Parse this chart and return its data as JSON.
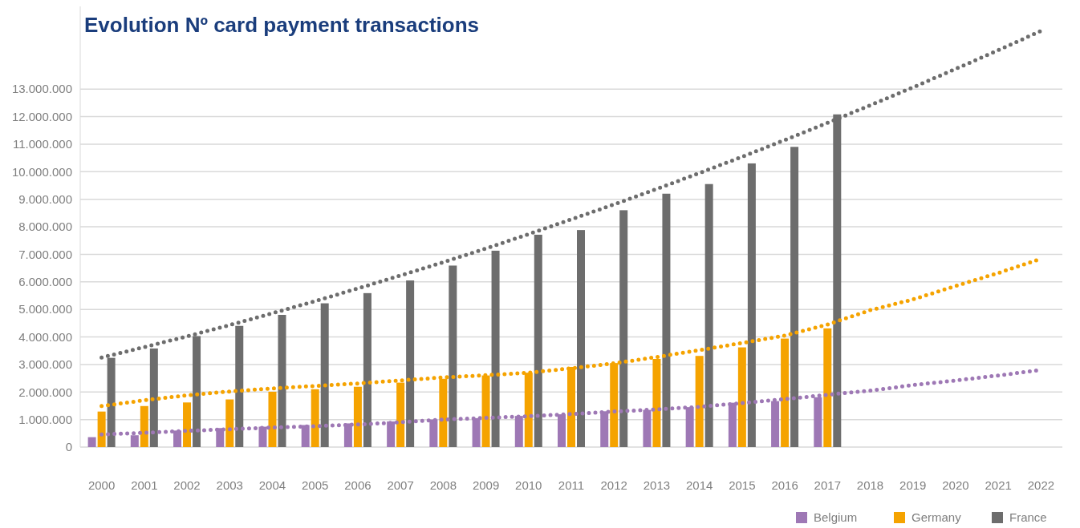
{
  "chart_data": {
    "type": "bar",
    "title": "Evolution Nº card payment transactions",
    "categories": [
      "2000",
      "2001",
      "2002",
      "2003",
      "2004",
      "2005",
      "2006",
      "2007",
      "2008",
      "2009",
      "2010",
      "2011",
      "2012",
      "2013",
      "2014",
      "2015",
      "2016",
      "2017",
      "2018",
      "2019",
      "2020",
      "2021",
      "2022"
    ],
    "series": [
      {
        "name": "Belgium",
        "color": "#9e78b5",
        "values": [
          360000,
          430000,
          600000,
          690000,
          740000,
          800000,
          860000,
          930000,
          1000000,
          1050000,
          1130000,
          1190000,
          1300000,
          1350000,
          1450000,
          1610000,
          1670000,
          1810000,
          null,
          null,
          null,
          null,
          null
        ]
      },
      {
        "name": "Germany",
        "color": "#f5a300",
        "values": [
          1290000,
          1490000,
          1620000,
          1730000,
          2010000,
          2100000,
          2190000,
          2340000,
          2480000,
          2600000,
          2700000,
          2910000,
          3050000,
          3200000,
          3310000,
          3620000,
          3940000,
          4310000,
          null,
          null,
          null,
          null,
          null
        ]
      },
      {
        "name": "France",
        "color": "#6d6d6d",
        "values": [
          3240000,
          3580000,
          4030000,
          4400000,
          4800000,
          5220000,
          5590000,
          6050000,
          6590000,
          7130000,
          7710000,
          7880000,
          8600000,
          9200000,
          9550000,
          10300000,
          10900000,
          12080000,
          null,
          null,
          null,
          null,
          null
        ]
      },
      {
        "type": "line",
        "color": "#9e78b5",
        "values": [
          460000,
          520000,
          590000,
          650000,
          710000,
          760000,
          820000,
          900000,
          1000000,
          1060000,
          1120000,
          1200000,
          1290000,
          1370000,
          1460000,
          1600000,
          1740000,
          1900000,
          2050000,
          2250000,
          2420000,
          2600000,
          2800000
        ]
      },
      {
        "type": "line",
        "color": "#f5a300",
        "values": [
          1490000,
          1700000,
          1880000,
          2020000,
          2130000,
          2220000,
          2310000,
          2420000,
          2530000,
          2610000,
          2700000,
          2860000,
          3040000,
          3270000,
          3520000,
          3780000,
          4050000,
          4450000,
          4970000,
          5360000,
          5850000,
          6320000,
          6840000
        ]
      },
      {
        "type": "line",
        "color": "#6d6d6d",
        "values": [
          3250000,
          3630000,
          4020000,
          4430000,
          4860000,
          5300000,
          5760000,
          6230000,
          6710000,
          7210000,
          7730000,
          8270000,
          8810000,
          9370000,
          9950000,
          10540000,
          11150000,
          11770000,
          12410000,
          13060000,
          13730000,
          14410000,
          15110000
        ]
      }
    ],
    "ylim": [
      0,
      16000000
    ],
    "yticks": [
      0,
      {
        "value": 1000000,
        "label": "1.000.000"
      },
      {
        "value": 2000000,
        "label": "2.000.000"
      },
      {
        "value": 3000000,
        "label": "3.000.000"
      },
      {
        "value": 4000000,
        "label": "4.000.000"
      },
      {
        "value": 5000000,
        "label": "5.000.000"
      },
      {
        "value": 6000000,
        "label": "6.000.000"
      },
      {
        "value": 7000000,
        "label": "7.000.000"
      },
      {
        "value": 8000000,
        "label": "8.000.000"
      },
      {
        "value": 9000000,
        "label": "9.000.000"
      },
      {
        "value": 10000000,
        "label": "10.000.000"
      },
      {
        "value": 11000000,
        "label": "11.000.000"
      },
      {
        "value": 12000000,
        "label": "12.000.000"
      },
      {
        "value": 13000000,
        "label": "13.000.000"
      }
    ],
    "grid": "y",
    "legend": "bottom right",
    "line_style": "dotted"
  }
}
